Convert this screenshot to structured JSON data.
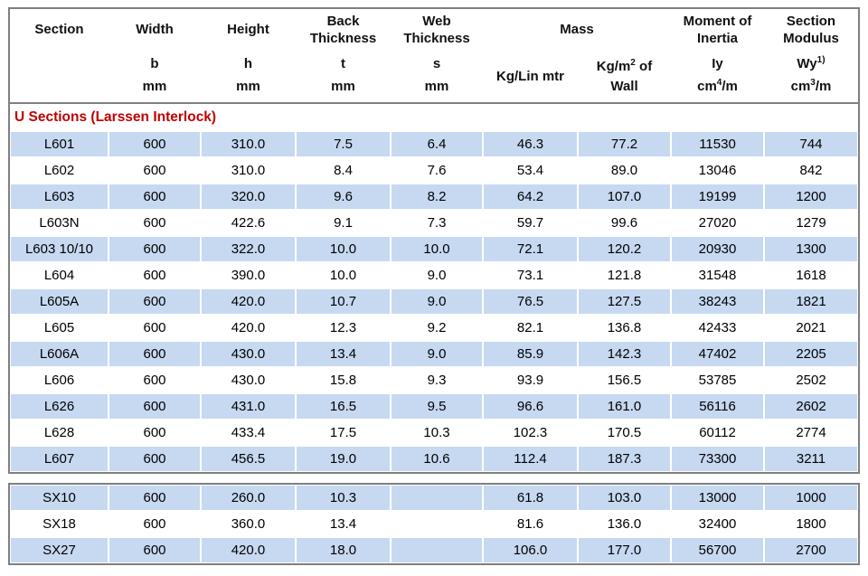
{
  "colors": {
    "row_shaded": "#c6d9f1",
    "section_title_text": "#c00000",
    "table_border": "#7f7f7f"
  },
  "header": {
    "section": {
      "title": "Section"
    },
    "width": {
      "title": "Width",
      "symbol": "b",
      "unit": "mm"
    },
    "height": {
      "title": "Height",
      "symbol": "h",
      "unit": "mm"
    },
    "back": {
      "title": "Back Thickness",
      "symbol": "t",
      "unit": "mm"
    },
    "web": {
      "title": "Web Thickness",
      "symbol": "s",
      "unit": "mm"
    },
    "mass": {
      "title": "Mass",
      "linear": "Kg/Lin mtr",
      "wall_pre": "Kg/m",
      "wall_sup": "2",
      "wall_post": " of",
      "wall_line2": "Wall"
    },
    "inertia": {
      "title": "Moment of Inertia",
      "symbol": "Iy",
      "unit_pre": "cm",
      "unit_sup": "4",
      "unit_post": "/m"
    },
    "modulus": {
      "title": "Section Modulus",
      "symbol_pre": "Wy",
      "symbol_sup": "1)",
      "unit_pre": "cm",
      "unit_sup": "3",
      "unit_post": "/m"
    }
  },
  "section_title": "U Sections (Larssen Interlock)",
  "rows": [
    [
      "L601",
      "600",
      "310.0",
      "7.5",
      "6.4",
      "46.3",
      "77.2",
      "11530",
      "744"
    ],
    [
      "L602",
      "600",
      "310.0",
      "8.4",
      "7.6",
      "53.4",
      "89.0",
      "13046",
      "842"
    ],
    [
      "L603",
      "600",
      "320.0",
      "9.6",
      "8.2",
      "64.2",
      "107.0",
      "19199",
      "1200"
    ],
    [
      "L603N",
      "600",
      "422.6",
      "9.1",
      "7.3",
      "59.7",
      "99.6",
      "27020",
      "1279"
    ],
    [
      "L603 10/10",
      "600",
      "322.0",
      "10.0",
      "10.0",
      "72.1",
      "120.2",
      "20930",
      "1300"
    ],
    [
      "L604",
      "600",
      "390.0",
      "10.0",
      "9.0",
      "73.1",
      "121.8",
      "31548",
      "1618"
    ],
    [
      "L605A",
      "600",
      "420.0",
      "10.7",
      "9.0",
      "76.5",
      "127.5",
      "38243",
      "1821"
    ],
    [
      "L605",
      "600",
      "420.0",
      "12.3",
      "9.2",
      "82.1",
      "136.8",
      "42433",
      "2021"
    ],
    [
      "L606A",
      "600",
      "430.0",
      "13.4",
      "9.0",
      "85.9",
      "142.3",
      "47402",
      "2205"
    ],
    [
      "L606",
      "600",
      "430.0",
      "15.8",
      "9.3",
      "93.9",
      "156.5",
      "53785",
      "2502"
    ],
    [
      "L626",
      "600",
      "431.0",
      "16.5",
      "9.5",
      "96.6",
      "161.0",
      "56116",
      "2602"
    ],
    [
      "L628",
      "600",
      "433.4",
      "17.5",
      "10.3",
      "102.3",
      "170.5",
      "60112",
      "2774"
    ],
    [
      "L607",
      "600",
      "456.5",
      "19.0",
      "10.6",
      "112.4",
      "187.3",
      "73300",
      "3211"
    ]
  ],
  "sx_rows": [
    [
      "SX10",
      "600",
      "260.0",
      "10.3",
      "",
      "61.8",
      "103.0",
      "13000",
      "1000"
    ],
    [
      "SX18",
      "600",
      "360.0",
      "13.4",
      "",
      "81.6",
      "136.0",
      "32400",
      "1800"
    ],
    [
      "SX27",
      "600",
      "420.0",
      "18.0",
      "",
      "106.0",
      "177.0",
      "56700",
      "2700"
    ]
  ]
}
